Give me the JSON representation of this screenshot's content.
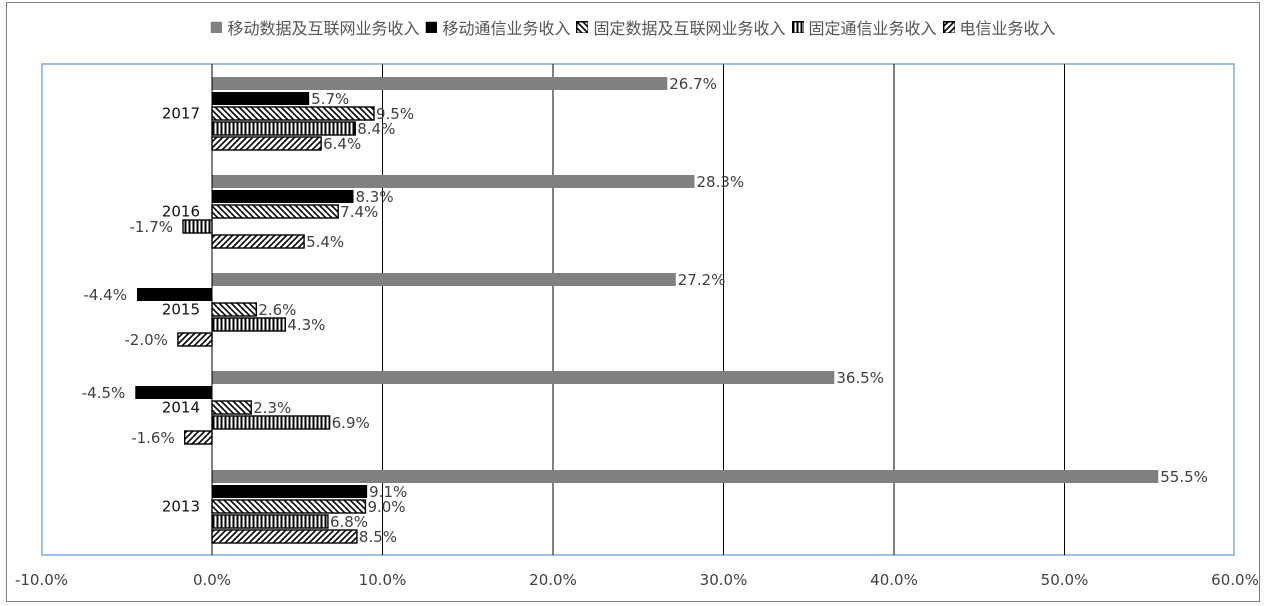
{
  "chart_data": {
    "type": "bar",
    "orientation": "horizontal",
    "categories": [
      "2017",
      "2016",
      "2015",
      "2014",
      "2013"
    ],
    "series": [
      {
        "name": "移动数据及互联网业务收入",
        "values": [
          26.7,
          28.3,
          27.2,
          36.5,
          55.5
        ],
        "labels": [
          "26.7%",
          "28.3%",
          "27.2%",
          "36.5%",
          "55.5%"
        ],
        "fill": "solid-gray"
      },
      {
        "name": "移动通信业务收入",
        "values": [
          5.7,
          8.3,
          -4.4,
          -4.5,
          9.1
        ],
        "labels": [
          "5.7%",
          "8.3%",
          "-4.4%",
          "-4.5%",
          "9.1%"
        ],
        "fill": "solid-black"
      },
      {
        "name": "固定数据及互联网业务收入",
        "values": [
          9.5,
          7.4,
          2.6,
          2.3,
          9.0
        ],
        "labels": [
          "9.5%",
          "7.4%",
          "2.6%",
          "2.3%",
          "9.0%"
        ],
        "fill": "diagonal-back"
      },
      {
        "name": "固定通信业务收入",
        "values": [
          8.4,
          -1.7,
          4.3,
          6.9,
          6.8
        ],
        "labels": [
          "8.4%",
          "-1.7%",
          "4.3%",
          "6.9%",
          "6.8%"
        ],
        "fill": "vertical-lines"
      },
      {
        "name": "电信业务收入",
        "values": [
          6.4,
          5.4,
          -2.0,
          -1.6,
          8.5
        ],
        "labels": [
          "6.4%",
          "5.4%",
          "-2.0%",
          "-1.6%",
          "8.5%"
        ],
        "fill": "diagonal-forward"
      }
    ],
    "x_ticks": [
      "-10.0%",
      "0.0%",
      "10.0%",
      "20.0%",
      "30.0%",
      "40.0%",
      "50.0%",
      "60.0%"
    ],
    "xlim": [
      -10,
      60
    ],
    "x_gridlines": true,
    "legend_position": "top",
    "colors": {
      "gray": "#808080",
      "black": "#000000",
      "grid": "#000000",
      "plot_border": "#5b9bd5",
      "text": "#404040"
    }
  }
}
